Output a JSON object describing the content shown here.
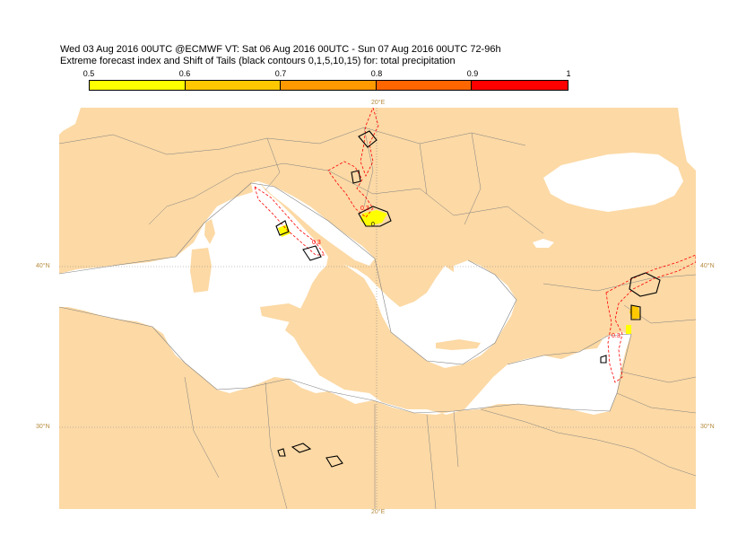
{
  "header": {
    "line1": "Wed 03 Aug 2016 00UTC @ECMWF VT: Sat 06 Aug 2016 00UTC - Sun 07 Aug 2016 00UTC  72-96h",
    "line2": "Extreme forecast index and Shift of Tails (black contours 0,1,5,10,15) for: total precipitation"
  },
  "legend": {
    "ticks": [
      "0.5",
      "0.6",
      "0.7",
      "0.8",
      "0.9",
      "1"
    ],
    "colors": [
      "#ffff00",
      "#ffc800",
      "#ff9900",
      "#ff6600",
      "#ff0000"
    ]
  },
  "map": {
    "land_color": "#fcd9a5",
    "sea_color": "#ffffff",
    "coast_color": "#808080",
    "sot_contour_color": "#000000",
    "efi_contour_color": "#ff0000",
    "efi_contour_labels": [
      "0.3",
      "0.3",
      "0.3"
    ],
    "sot_label": "0",
    "graticule": {
      "lon_top": "20°E",
      "lon_bottom": "20°E",
      "lat_left": [
        "40°N",
        "30°N"
      ],
      "lat_right": [
        "40°N",
        "30°N"
      ]
    }
  }
}
